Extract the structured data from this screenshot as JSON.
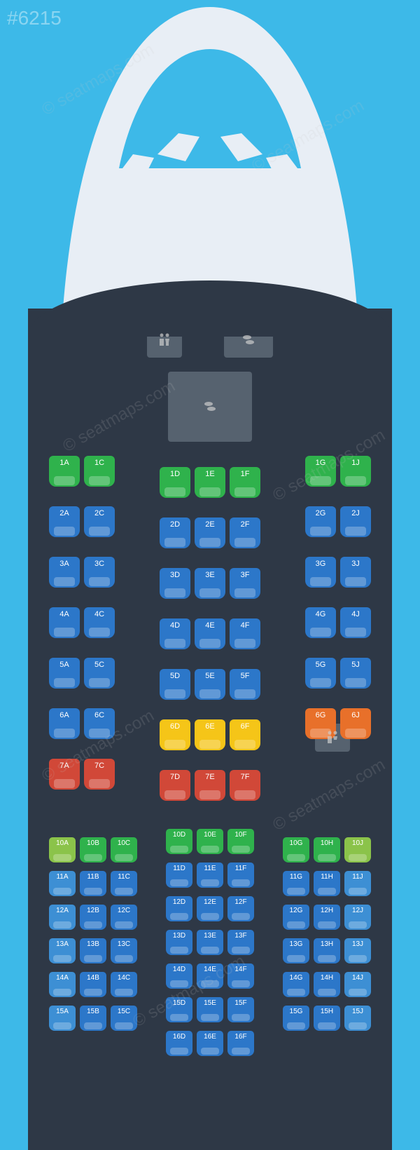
{
  "watermark_id": "#6215",
  "watermark_text": "© seatmaps.com",
  "colors": {
    "bg": "#3db9e8",
    "cabin": "#2e3846",
    "fuselage": "#e8eef5",
    "service": "#56626f",
    "green": "#2fb24c",
    "green_light": "#8bc34a",
    "blue": "#2c77c9",
    "blue_light": "#3d8fd4",
    "yellow": "#f5c518",
    "orange": "#e8702a",
    "red": "#d14838"
  },
  "front_section": {
    "seat_size": "large",
    "rows": [
      {
        "left": [
          {
            "l": "1A",
            "c": "green"
          },
          {
            "l": "1C",
            "c": "green"
          }
        ],
        "center": [
          {
            "l": "1D",
            "c": "green"
          },
          {
            "l": "1E",
            "c": "green"
          },
          {
            "l": "1F",
            "c": "green"
          }
        ],
        "right": [
          {
            "l": "1G",
            "c": "green"
          },
          {
            "l": "1J",
            "c": "green"
          }
        ],
        "center_offset": true
      },
      {
        "left": [
          {
            "l": "2A",
            "c": "blue"
          },
          {
            "l": "2C",
            "c": "blue"
          }
        ],
        "center": [
          {
            "l": "2D",
            "c": "blue"
          },
          {
            "l": "2E",
            "c": "blue"
          },
          {
            "l": "2F",
            "c": "blue"
          }
        ],
        "right": [
          {
            "l": "2G",
            "c": "blue"
          },
          {
            "l": "2J",
            "c": "blue"
          }
        ],
        "center_offset": true
      },
      {
        "left": [
          {
            "l": "3A",
            "c": "blue"
          },
          {
            "l": "3C",
            "c": "blue"
          }
        ],
        "center": [
          {
            "l": "3D",
            "c": "blue"
          },
          {
            "l": "3E",
            "c": "blue"
          },
          {
            "l": "3F",
            "c": "blue"
          }
        ],
        "right": [
          {
            "l": "3G",
            "c": "blue"
          },
          {
            "l": "3J",
            "c": "blue"
          }
        ],
        "center_offset": true
      },
      {
        "left": [
          {
            "l": "4A",
            "c": "blue"
          },
          {
            "l": "4C",
            "c": "blue"
          }
        ],
        "center": [
          {
            "l": "4D",
            "c": "blue"
          },
          {
            "l": "4E",
            "c": "blue"
          },
          {
            "l": "4F",
            "c": "blue"
          }
        ],
        "right": [
          {
            "l": "4G",
            "c": "blue"
          },
          {
            "l": "4J",
            "c": "blue"
          }
        ],
        "center_offset": true
      },
      {
        "left": [
          {
            "l": "5A",
            "c": "blue"
          },
          {
            "l": "5C",
            "c": "blue"
          }
        ],
        "center": [
          {
            "l": "5D",
            "c": "blue"
          },
          {
            "l": "5E",
            "c": "blue"
          },
          {
            "l": "5F",
            "c": "blue"
          }
        ],
        "right": [
          {
            "l": "5G",
            "c": "blue"
          },
          {
            "l": "5J",
            "c": "blue"
          }
        ],
        "center_offset": true
      },
      {
        "left": [
          {
            "l": "6A",
            "c": "blue"
          },
          {
            "l": "6C",
            "c": "blue"
          }
        ],
        "center": [
          {
            "l": "6D",
            "c": "yellow"
          },
          {
            "l": "6E",
            "c": "yellow"
          },
          {
            "l": "6F",
            "c": "yellow"
          }
        ],
        "right": [
          {
            "l": "6G",
            "c": "orange"
          },
          {
            "l": "6J",
            "c": "orange"
          }
        ],
        "center_offset": true
      },
      {
        "left": [
          {
            "l": "7A",
            "c": "red"
          },
          {
            "l": "7C",
            "c": "red"
          }
        ],
        "center": [
          {
            "l": "7D",
            "c": "red"
          },
          {
            "l": "7E",
            "c": "red"
          },
          {
            "l": "7F",
            "c": "red"
          }
        ],
        "right": [],
        "center_offset": true,
        "lav_right": true
      }
    ]
  },
  "rear_section": {
    "seat_size": "small",
    "rows": [
      {
        "left": [
          {
            "l": "10A",
            "c": "green_light"
          },
          {
            "l": "10B",
            "c": "green"
          },
          {
            "l": "10C",
            "c": "green"
          }
        ],
        "center": [
          {
            "l": "10D",
            "c": "green"
          },
          {
            "l": "10E",
            "c": "green"
          },
          {
            "l": "10F",
            "c": "green"
          }
        ],
        "right": [
          {
            "l": "10G",
            "c": "green"
          },
          {
            "l": "10H",
            "c": "green"
          },
          {
            "l": "10J",
            "c": "green_light"
          }
        ]
      },
      {
        "left": [
          {
            "l": "11A",
            "c": "blue_light"
          },
          {
            "l": "11B",
            "c": "blue"
          },
          {
            "l": "11C",
            "c": "blue"
          }
        ],
        "center": [
          {
            "l": "11D",
            "c": "blue"
          },
          {
            "l": "11E",
            "c": "blue"
          },
          {
            "l": "11F",
            "c": "blue"
          }
        ],
        "right": [
          {
            "l": "11G",
            "c": "blue"
          },
          {
            "l": "11H",
            "c": "blue"
          },
          {
            "l": "11J",
            "c": "blue_light"
          }
        ]
      },
      {
        "left": [
          {
            "l": "12A",
            "c": "blue_light"
          },
          {
            "l": "12B",
            "c": "blue"
          },
          {
            "l": "12C",
            "c": "blue"
          }
        ],
        "center": [
          {
            "l": "12D",
            "c": "blue"
          },
          {
            "l": "12E",
            "c": "blue"
          },
          {
            "l": "12F",
            "c": "blue"
          }
        ],
        "right": [
          {
            "l": "12G",
            "c": "blue"
          },
          {
            "l": "12H",
            "c": "blue"
          },
          {
            "l": "12J",
            "c": "blue_light"
          }
        ]
      },
      {
        "left": [
          {
            "l": "13A",
            "c": "blue_light"
          },
          {
            "l": "13B",
            "c": "blue"
          },
          {
            "l": "13C",
            "c": "blue"
          }
        ],
        "center": [
          {
            "l": "13D",
            "c": "blue"
          },
          {
            "l": "13E",
            "c": "blue"
          },
          {
            "l": "13F",
            "c": "blue"
          }
        ],
        "right": [
          {
            "l": "13G",
            "c": "blue"
          },
          {
            "l": "13H",
            "c": "blue"
          },
          {
            "l": "13J",
            "c": "blue_light"
          }
        ]
      },
      {
        "left": [
          {
            "l": "14A",
            "c": "blue_light"
          },
          {
            "l": "14B",
            "c": "blue"
          },
          {
            "l": "14C",
            "c": "blue"
          }
        ],
        "center": [
          {
            "l": "14D",
            "c": "blue"
          },
          {
            "l": "14E",
            "c": "blue"
          },
          {
            "l": "14F",
            "c": "blue"
          }
        ],
        "right": [
          {
            "l": "14G",
            "c": "blue"
          },
          {
            "l": "14H",
            "c": "blue"
          },
          {
            "l": "14J",
            "c": "blue_light"
          }
        ]
      },
      {
        "left": [
          {
            "l": "15A",
            "c": "blue_light"
          },
          {
            "l": "15B",
            "c": "blue"
          },
          {
            "l": "15C",
            "c": "blue"
          }
        ],
        "center": [
          {
            "l": "15D",
            "c": "blue"
          },
          {
            "l": "15E",
            "c": "blue"
          },
          {
            "l": "15F",
            "c": "blue"
          }
        ],
        "right": [
          {
            "l": "15G",
            "c": "blue"
          },
          {
            "l": "15H",
            "c": "blue"
          },
          {
            "l": "15J",
            "c": "blue_light"
          }
        ]
      },
      {
        "left": [],
        "center": [
          {
            "l": "16D",
            "c": "blue"
          },
          {
            "l": "16E",
            "c": "blue"
          },
          {
            "l": "16F",
            "c": "blue"
          }
        ],
        "right": []
      }
    ]
  }
}
